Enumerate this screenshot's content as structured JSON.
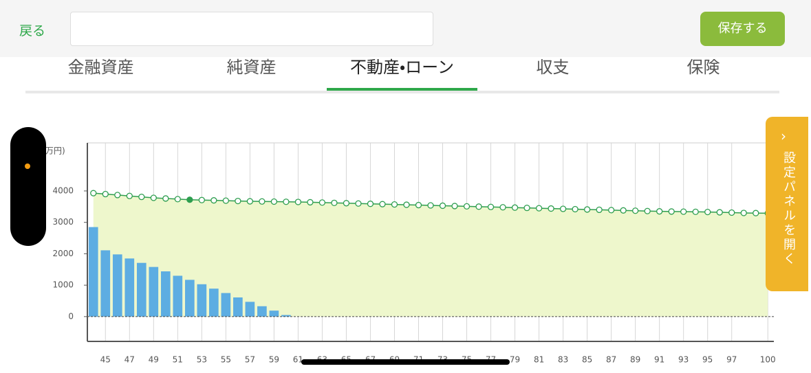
{
  "header": {
    "back": "戻る",
    "save": "保存する"
  },
  "tabs": {
    "items": [
      "金融資産",
      "純資産",
      "不動産・ローン",
      "収支",
      "保険"
    ],
    "active": 2
  },
  "side_panel": {
    "label": "設定パネルを開く"
  },
  "chart_data": {
    "type": "combo",
    "y_unit": "万円)",
    "x": [
      44,
      45,
      46,
      47,
      48,
      49,
      50,
      51,
      52,
      53,
      54,
      55,
      56,
      57,
      58,
      59,
      60,
      61,
      62,
      63,
      64,
      65,
      66,
      67,
      68,
      69,
      70,
      71,
      72,
      73,
      74,
      75,
      76,
      77,
      78,
      79,
      80,
      81,
      82,
      83,
      84,
      85,
      86,
      87,
      88,
      89,
      90,
      91,
      92,
      93,
      94,
      95,
      96,
      97,
      98,
      99,
      100
    ],
    "series": [
      {
        "type": "bar",
        "color": "#5dade2",
        "values": [
          2850,
          2110,
          1980,
          1850,
          1710,
          1580,
          1440,
          1300,
          1170,
          1030,
          890,
          750,
          610,
          470,
          330,
          190,
          50,
          0,
          0,
          0,
          0,
          0,
          0,
          0,
          0,
          0,
          0,
          0,
          0,
          0,
          0,
          0,
          0,
          0,
          0,
          0,
          0,
          0,
          0,
          0,
          0,
          0,
          0,
          0,
          0,
          0,
          0,
          0,
          0,
          0,
          0,
          0,
          0,
          0,
          0,
          0,
          0
        ]
      },
      {
        "type": "line",
        "color": "#2e9e4f",
        "area_color": "#eef7cc",
        "highlight": 8,
        "values": [
          3930,
          3900,
          3870,
          3840,
          3810,
          3780,
          3760,
          3740,
          3720,
          3710,
          3700,
          3690,
          3680,
          3670,
          3665,
          3660,
          3655,
          3650,
          3640,
          3630,
          3620,
          3610,
          3600,
          3590,
          3580,
          3570,
          3560,
          3550,
          3540,
          3530,
          3520,
          3510,
          3500,
          3490,
          3480,
          3470,
          3460,
          3450,
          3440,
          3430,
          3420,
          3410,
          3400,
          3390,
          3380,
          3370,
          3360,
          3350,
          3345,
          3340,
          3335,
          3330,
          3320,
          3310,
          3300,
          3295,
          3290
        ]
      }
    ],
    "xlim": [
      43.5,
      100.5
    ],
    "ylim": [
      -790,
      5530
    ],
    "xticks": [
      45,
      47,
      49,
      51,
      53,
      55,
      57,
      59,
      61,
      63,
      65,
      67,
      69,
      71,
      73,
      75,
      77,
      79,
      81,
      83,
      85,
      87,
      89,
      91,
      93,
      95,
      97,
      100
    ],
    "yticks": [
      0,
      1000,
      2000,
      3000,
      4000
    ],
    "grid": true
  }
}
